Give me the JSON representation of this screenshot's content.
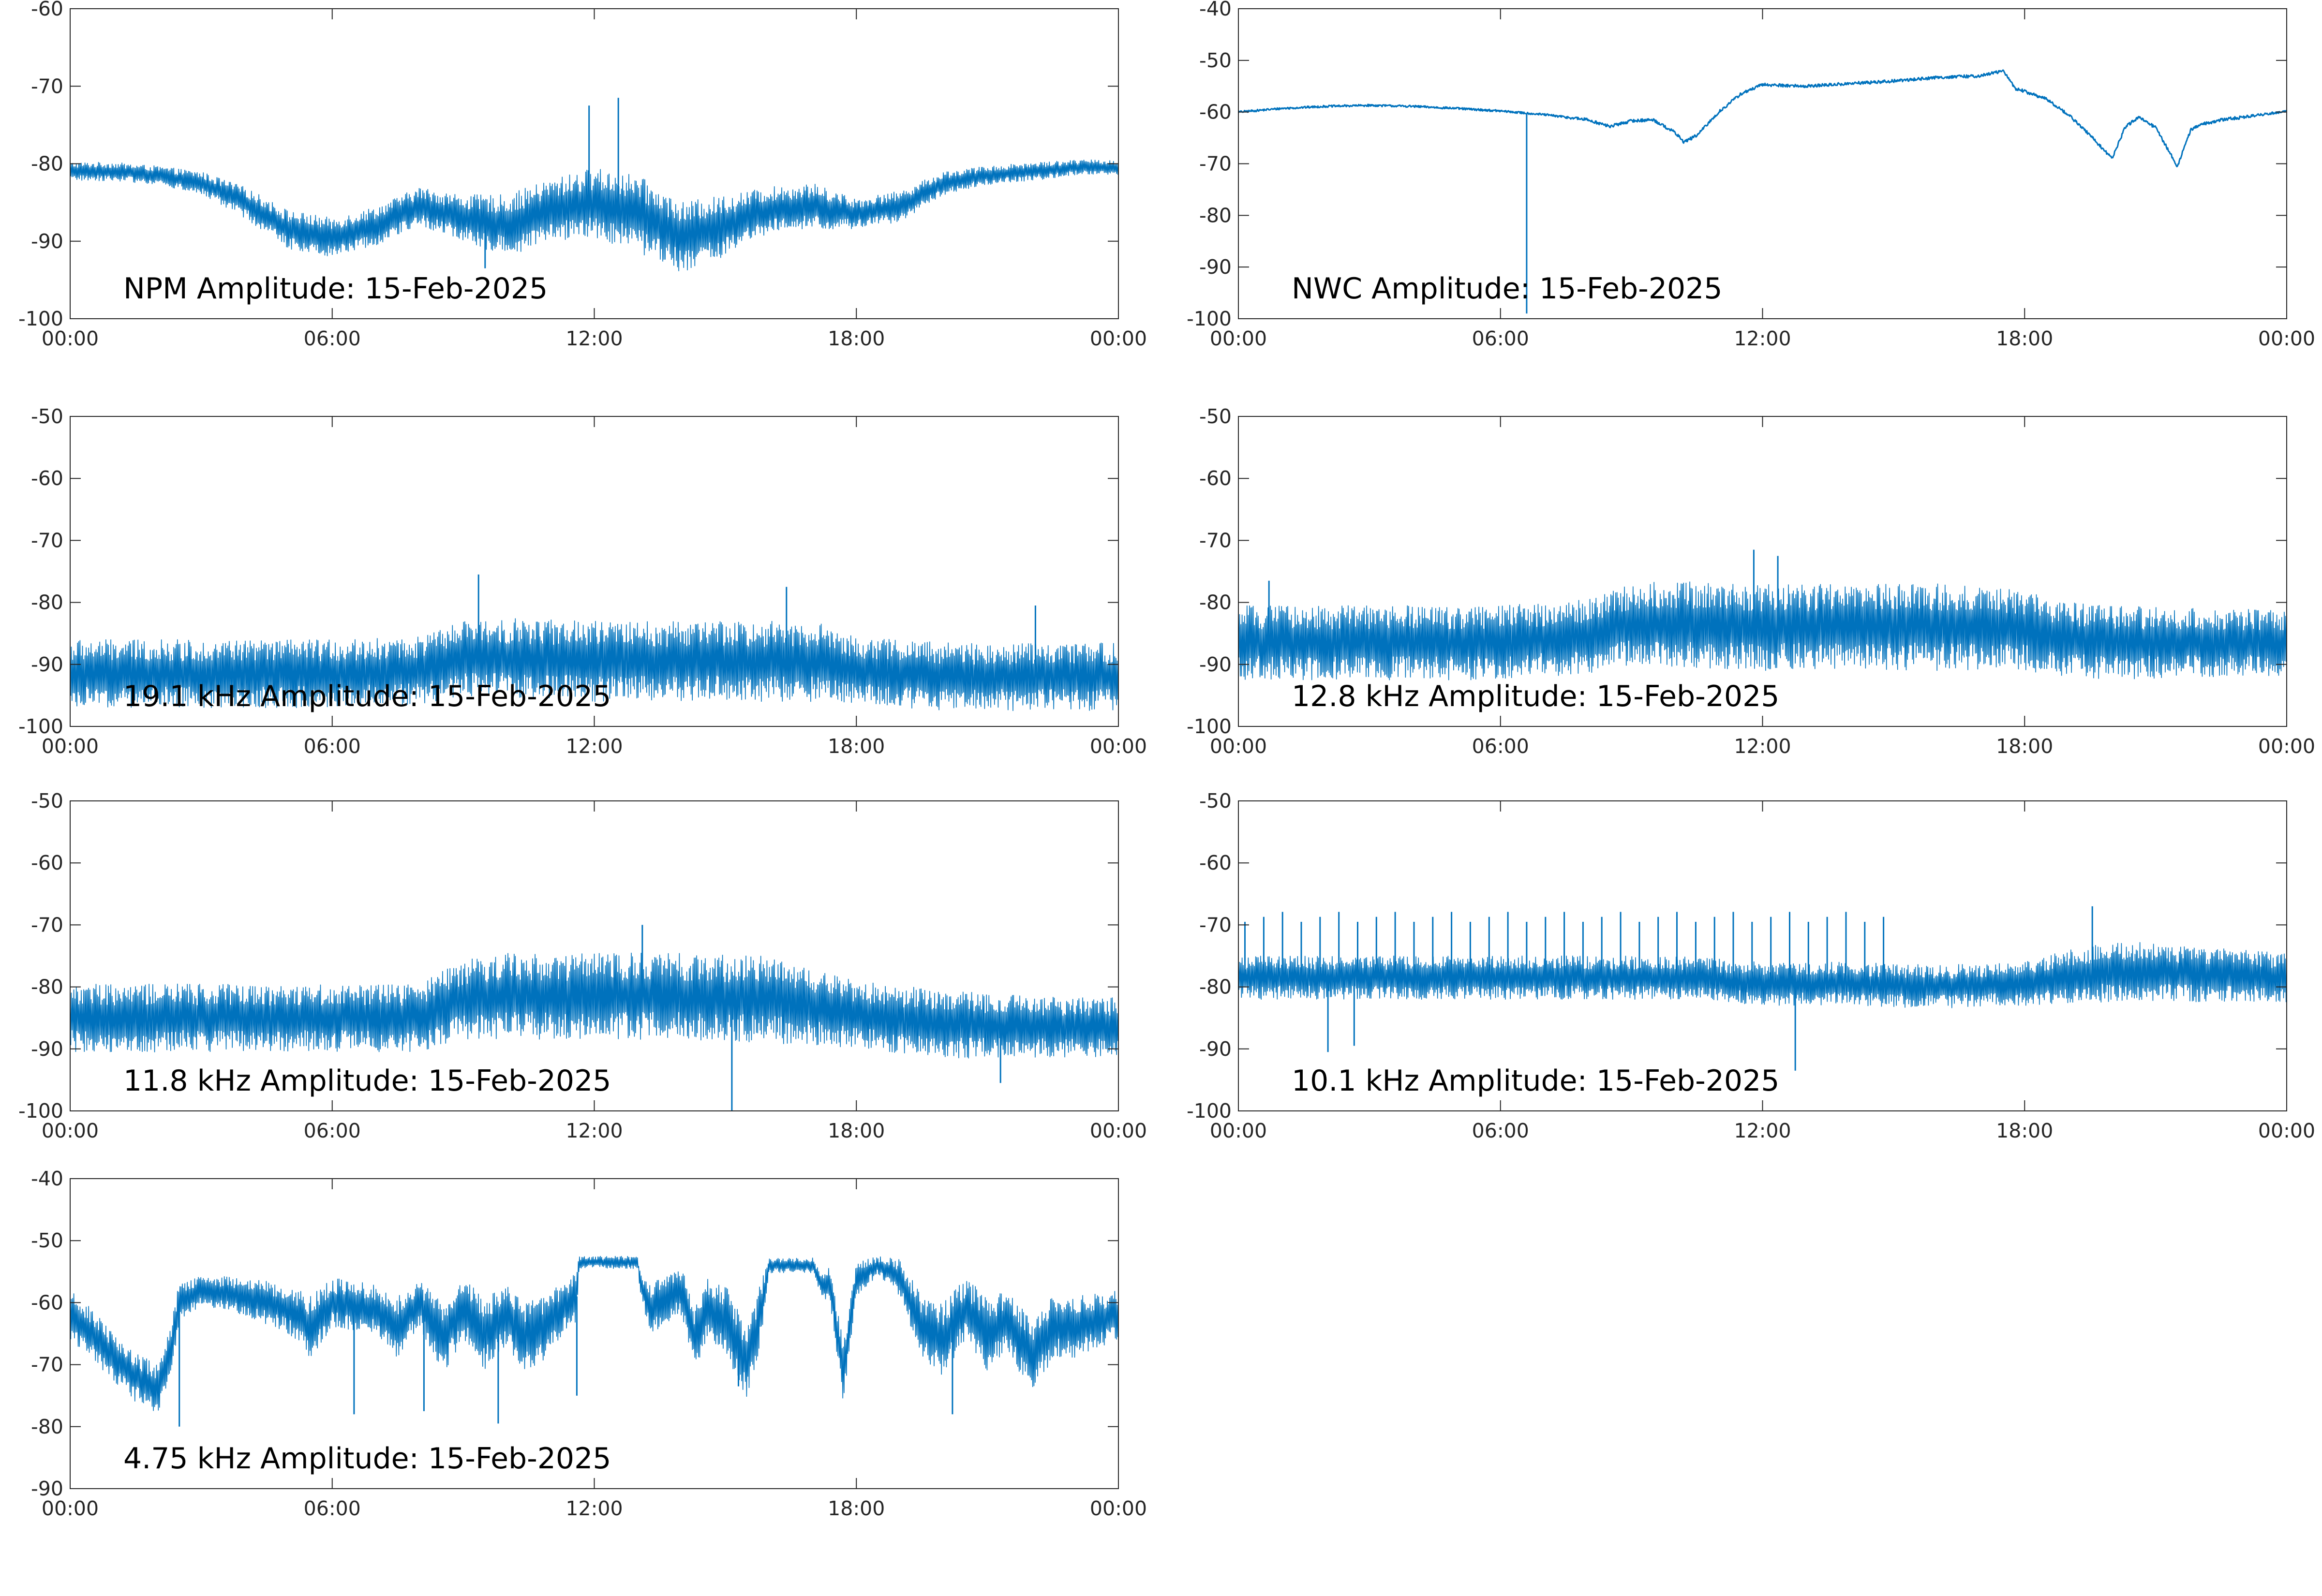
{
  "figure": {
    "date_text": "15-Feb-2025",
    "line_color": "#0072BD",
    "axis_color": "#262626",
    "x_tick_labels": [
      "00:00",
      "06:00",
      "12:00",
      "18:00",
      "00:00"
    ]
  },
  "chart_data": [
    {
      "type": "line",
      "title": "NPM Amplitude: 15-Feb-2025",
      "x_unit": "hours",
      "xlim": [
        0,
        24
      ],
      "x_ticks": [
        0,
        6,
        12,
        18,
        24
      ],
      "ylim": [
        -100,
        -60
      ],
      "y_ticks": [
        -100,
        -90,
        -80,
        -70,
        -60
      ],
      "grid": false,
      "series": [
        {
          "x": [
            0,
            1,
            2,
            3,
            4,
            5,
            6,
            7,
            8,
            9,
            10,
            11,
            12,
            13,
            14,
            15,
            16,
            17,
            18,
            19,
            20,
            21,
            22,
            23,
            24
          ],
          "y": [
            -81,
            -81,
            -81.5,
            -82.5,
            -85,
            -88.5,
            -89.5,
            -88,
            -85.5,
            -87,
            -88,
            -86,
            -85,
            -86.5,
            -89.5,
            -88,
            -86,
            -85.5,
            -86.5,
            -85.5,
            -82.5,
            -81.5,
            -81,
            -80.5,
            -80.5
          ],
          "spread": [
            1.2,
            1.2,
            1.2,
            1.5,
            2,
            2.5,
            2.5,
            2.5,
            2.5,
            3,
            4,
            4,
            4.5,
            5,
            4.5,
            4,
            3,
            3,
            2,
            2,
            1.5,
            1.2,
            1.2,
            1,
            1
          ]
        }
      ],
      "spikes": [
        [
          11.88,
          -72.5
        ],
        [
          12.55,
          -71.5
        ],
        [
          9.5,
          -93.5
        ]
      ]
    },
    {
      "type": "line",
      "title": "NWC Amplitude: 15-Feb-2025",
      "x_unit": "hours",
      "xlim": [
        0,
        24
      ],
      "x_ticks": [
        0,
        6,
        12,
        18,
        24
      ],
      "ylim": [
        -100,
        -40
      ],
      "y_ticks": [
        -100,
        -90,
        -80,
        -70,
        -60,
        -50,
        -40
      ],
      "grid": false,
      "series": [
        {
          "x": [
            0,
            1,
            2,
            3,
            4,
            5,
            6,
            7,
            8,
            8.5,
            9,
            9.5,
            10,
            10.2,
            10.5,
            11,
            11.5,
            12,
            13,
            14,
            15,
            16,
            17,
            17.5,
            17.8,
            18,
            18.5,
            19,
            19.5,
            20,
            20.3,
            20.6,
            21,
            21.5,
            21.8,
            22,
            22.5,
            23,
            24
          ],
          "y": [
            -60,
            -59.3,
            -58.9,
            -58.7,
            -58.9,
            -59.3,
            -59.8,
            -60.5,
            -61.5,
            -62.8,
            -61.7,
            -61.5,
            -64,
            -65.8,
            -64.5,
            -60,
            -56.5,
            -54.7,
            -55,
            -54.5,
            -54,
            -53.3,
            -53,
            -52,
            -55.5,
            -56,
            -57.5,
            -60.5,
            -64.5,
            -69,
            -63,
            -61,
            -63,
            -70.5,
            -63.5,
            -62.5,
            -61.5,
            -61,
            -59.8
          ],
          "spread": [
            0.2,
            0.2,
            0.2,
            0.2,
            0.2,
            0.2,
            0.2,
            0.2,
            0.3,
            0.3,
            0.3,
            0.3,
            0.3,
            0.3,
            0.3,
            0.3,
            0.3,
            0.3,
            0.3,
            0.3,
            0.3,
            0.3,
            0.3,
            0.3,
            0.3,
            0.3,
            0.3,
            0.3,
            0.3,
            0.3,
            0.3,
            0.3,
            0.3,
            0.3,
            0.3,
            0.3,
            0.3,
            0.3,
            0.2
          ]
        }
      ],
      "spikes": [
        [
          6.6,
          -99
        ]
      ]
    },
    {
      "type": "line",
      "title": "19.1 kHz Amplitude: 15-Feb-2025",
      "x_unit": "hours",
      "xlim": [
        0,
        24
      ],
      "x_ticks": [
        0,
        6,
        12,
        18,
        24
      ],
      "ylim": [
        -100,
        -50
      ],
      "y_ticks": [
        -100,
        -90,
        -80,
        -70,
        -60,
        -50
      ],
      "grid": false,
      "series": [
        {
          "x": [
            0,
            2,
            4,
            6,
            8,
            9,
            10,
            12,
            14,
            16,
            17,
            18,
            20,
            22,
            24
          ],
          "y": [
            -91.5,
            -91.5,
            -91.5,
            -91.5,
            -91,
            -89,
            -89,
            -89.5,
            -89.5,
            -89.5,
            -89.5,
            -91,
            -92,
            -92,
            -92
          ],
          "spread": [
            5.5,
            5.5,
            5.5,
            5.5,
            5.5,
            6,
            6.5,
            6.5,
            6.5,
            6.5,
            6.5,
            5.5,
            5.5,
            5.5,
            5.5
          ]
        }
      ],
      "spikes": [
        [
          9.35,
          -75.5
        ],
        [
          16.4,
          -77.5
        ],
        [
          22.1,
          -80.5
        ]
      ]
    },
    {
      "type": "line",
      "title": "12.8 kHz Amplitude: 15-Feb-2025",
      "x_unit": "hours",
      "xlim": [
        0,
        24
      ],
      "x_ticks": [
        0,
        6,
        12,
        18,
        24
      ],
      "ylim": [
        -100,
        -50
      ],
      "y_ticks": [
        -100,
        -90,
        -80,
        -70,
        -60,
        -50
      ],
      "grid": false,
      "series": [
        {
          "x": [
            0,
            2,
            4,
            6,
            8,
            9,
            10,
            12,
            14,
            16,
            18,
            19,
            20,
            22,
            24
          ],
          "y": [
            -86.5,
            -86.5,
            -86.5,
            -86.5,
            -85.5,
            -83.5,
            -83.5,
            -84,
            -84,
            -84,
            -84.5,
            -86,
            -86.5,
            -86.5,
            -86.5
          ],
          "spread": [
            6,
            6,
            6,
            6,
            6,
            6.5,
            7,
            7,
            7,
            7,
            6.5,
            6,
            6,
            5.5,
            5.5
          ]
        }
      ],
      "spikes": [
        [
          11.8,
          -71.5
        ],
        [
          12.35,
          -72.5
        ],
        [
          0.7,
          -76.5
        ]
      ]
    },
    {
      "type": "line",
      "title": "11.8 kHz Amplitude: 15-Feb-2025",
      "x_unit": "hours",
      "xlim": [
        0,
        24
      ],
      "x_ticks": [
        0,
        6,
        12,
        18,
        24
      ],
      "ylim": [
        -100,
        -50
      ],
      "y_ticks": [
        -100,
        -90,
        -80,
        -70,
        -60,
        -50
      ],
      "grid": false,
      "series": [
        {
          "x": [
            0,
            2,
            4,
            6,
            8,
            9,
            10,
            12,
            14,
            16,
            18,
            20,
            22,
            24
          ],
          "y": [
            -85,
            -85,
            -85,
            -85,
            -85,
            -82,
            -81.5,
            -81.5,
            -81.5,
            -82,
            -84.5,
            -86,
            -86.5,
            -86.5
          ],
          "spread": [
            5.5,
            5.5,
            5.5,
            5.5,
            5.5,
            6.5,
            7,
            7,
            7,
            7,
            5.5,
            5.5,
            5,
            5
          ]
        }
      ],
      "spikes": [
        [
          13.1,
          -70
        ],
        [
          15.15,
          -100
        ],
        [
          21.3,
          -95.5
        ]
      ]
    },
    {
      "type": "line",
      "title": "10.1 kHz Amplitude: 15-Feb-2025",
      "x_unit": "hours",
      "xlim": [
        0,
        24
      ],
      "x_ticks": [
        0,
        6,
        12,
        18,
        24
      ],
      "ylim": [
        -100,
        -50
      ],
      "y_ticks": [
        -100,
        -90,
        -80,
        -70,
        -60,
        -50
      ],
      "grid": false,
      "series": [
        {
          "x": [
            0,
            2,
            4,
            6,
            8,
            10,
            12,
            14,
            16,
            18,
            19,
            20,
            22,
            24
          ],
          "y": [
            -78.5,
            -78.5,
            -78.5,
            -78.5,
            -78.5,
            -78.5,
            -79.5,
            -79.5,
            -80,
            -79.5,
            -78.5,
            -77.5,
            -78,
            -78.5
          ],
          "spread": [
            3.5,
            3.5,
            3.5,
            3.5,
            3.5,
            3.5,
            3.5,
            3.5,
            3.5,
            3.5,
            4.5,
            5,
            4.5,
            4
          ]
        }
      ],
      "spikes": [
        [
          2.05,
          -90.5
        ],
        [
          2.65,
          -89.5
        ],
        [
          12.75,
          -93.5
        ],
        [
          19.55,
          -67
        ]
      ],
      "bursts": {
        "start": 0.15,
        "end": 15.0,
        "period": 0.43,
        "level": -69.5
      }
    },
    {
      "type": "line",
      "title": "4.75 kHz Amplitude: 15-Feb-2025",
      "x_unit": "hours",
      "xlim": [
        0,
        24
      ],
      "x_ticks": [
        0,
        6,
        12,
        18,
        24
      ],
      "ylim": [
        -90,
        -40
      ],
      "y_ticks": [
        -90,
        -80,
        -70,
        -60,
        -50,
        -40
      ],
      "grid": false,
      "series": [
        {
          "x": [
            0,
            0.5,
            1,
            1.5,
            2,
            2.3,
            2.5,
            3,
            4,
            5,
            5.5,
            6,
            7,
            7.5,
            8,
            8.5,
            9,
            9.5,
            10,
            10.5,
            11,
            11.4,
            11.6,
            11.65,
            12,
            13,
            13.05,
            13.3,
            14,
            14.3,
            14.6,
            15,
            15.5,
            15.8,
            16,
            16.5,
            17,
            17.2,
            17.4,
            17.7,
            18,
            18.5,
            19,
            19.5,
            20,
            20.5,
            21,
            21.5,
            22,
            22.5,
            23,
            24
          ],
          "y": [
            -62,
            -65,
            -69,
            -72,
            -74,
            -68,
            -60,
            -58,
            -59,
            -61,
            -64,
            -60,
            -61,
            -64,
            -60,
            -66,
            -61,
            -65,
            -62,
            -66,
            -63,
            -60,
            -59,
            -53.5,
            -53.5,
            -53.5,
            -57,
            -61,
            -58,
            -66,
            -61,
            -63,
            -70,
            -62,
            -54,
            -54,
            -54,
            -57,
            -57,
            -71,
            -56,
            -54,
            -56,
            -64,
            -66,
            -61,
            -65,
            -63,
            -69,
            -64,
            -64,
            -62
          ],
          "spread": [
            4,
            4,
            4,
            4,
            4,
            4,
            3.5,
            2.5,
            3,
            4,
            5,
            4,
            4,
            5,
            4,
            6,
            5,
            6,
            5,
            6,
            5,
            4,
            4,
            1,
            1,
            1,
            2,
            4,
            4,
            5,
            5,
            6,
            6,
            5,
            1.2,
            1.2,
            1.2,
            2,
            3,
            5,
            3,
            1.5,
            3,
            5,
            6,
            5,
            6,
            5,
            6,
            5,
            5,
            4
          ]
        }
      ],
      "spikes": [
        [
          11.6,
          -75
        ],
        [
          2.5,
          -80
        ],
        [
          6.5,
          -78
        ],
        [
          8.1,
          -77.5
        ],
        [
          9.8,
          -79.5
        ],
        [
          15.3,
          -73.5
        ],
        [
          20.2,
          -78
        ]
      ]
    }
  ]
}
